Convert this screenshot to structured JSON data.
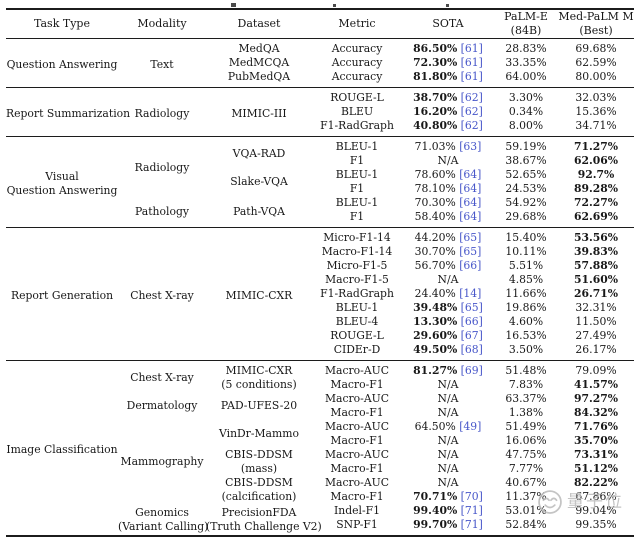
{
  "watermark": {
    "text": "量子位",
    "icon": "wechat-smiley-icon",
    "color": "#bdbdbd"
  },
  "table": {
    "cite_color": "#4756c9",
    "header": [
      {
        "lines": [
          "Task Type"
        ]
      },
      {
        "lines": [
          "Modality"
        ]
      },
      {
        "lines": [
          "Dataset"
        ]
      },
      {
        "lines": [
          "Metric"
        ]
      },
      {
        "lines": [
          "SOTA"
        ]
      },
      {
        "lines": [
          "PaLM-E",
          "(84B)"
        ]
      },
      {
        "lines": [
          "Med-PaLM M",
          "(Best)"
        ]
      }
    ],
    "sections": [
      {
        "task": [
          "Question Answering"
        ],
        "modality": [
          {
            "lines": [
              "Text"
            ],
            "span": 3
          }
        ],
        "dataset": [
          {
            "lines": [
              "MedQA"
            ],
            "span": 1
          },
          {
            "lines": [
              "MedMCQA"
            ],
            "span": 1
          },
          {
            "lines": [
              "PubMedQA"
            ],
            "span": 1
          }
        ],
        "rows": [
          {
            "metric": "Accuracy",
            "sota": {
              "value": "86.50%",
              "cite": "[61]",
              "bold": true
            },
            "palme": "28.83%",
            "medpalm": {
              "value": "69.68%",
              "bold": false
            }
          },
          {
            "metric": "Accuracy",
            "sota": {
              "value": "72.30%",
              "cite": "[61]",
              "bold": true
            },
            "palme": "33.35%",
            "medpalm": {
              "value": "62.59%",
              "bold": false
            }
          },
          {
            "metric": "Accuracy",
            "sota": {
              "value": "81.80%",
              "cite": "[61]",
              "bold": true
            },
            "palme": "64.00%",
            "medpalm": {
              "value": "80.00%",
              "bold": false
            }
          }
        ]
      },
      {
        "task": [
          "Report Summarization"
        ],
        "modality": [
          {
            "lines": [
              "Radiology"
            ],
            "span": 3
          }
        ],
        "dataset": [
          {
            "lines": [
              "MIMIC-III"
            ],
            "span": 3
          }
        ],
        "rows": [
          {
            "metric": "ROUGE-L",
            "sota": {
              "value": "38.70%",
              "cite": "[62]",
              "bold": true
            },
            "palme": "3.30%",
            "medpalm": {
              "value": "32.03%",
              "bold": false
            }
          },
          {
            "metric": "BLEU",
            "sota": {
              "value": "16.20%",
              "cite": "[62]",
              "bold": true
            },
            "palme": "0.34%",
            "medpalm": {
              "value": "15.36%",
              "bold": false
            }
          },
          {
            "metric": "F1-RadGraph",
            "sota": {
              "value": "40.80%",
              "cite": "[62]",
              "bold": true
            },
            "palme": "8.00%",
            "medpalm": {
              "value": "34.71%",
              "bold": false
            }
          }
        ]
      },
      {
        "task": [
          "Visual",
          "Question Answering"
        ],
        "modality": [
          {
            "lines": [
              "Radiology"
            ],
            "span": 4
          },
          {
            "lines": [
              "Pathology"
            ],
            "span": 2
          }
        ],
        "dataset": [
          {
            "lines": [
              "VQA-RAD"
            ],
            "span": 2
          },
          {
            "lines": [
              "Slake-VQA"
            ],
            "span": 2
          },
          {
            "lines": [
              "Path-VQA"
            ],
            "span": 2
          }
        ],
        "rows": [
          {
            "metric": "BLEU-1",
            "sota": {
              "value": "71.03%",
              "cite": "[63]",
              "bold": false
            },
            "palme": "59.19%",
            "medpalm": {
              "value": "71.27%",
              "bold": true
            }
          },
          {
            "metric": "F1",
            "sota": {
              "value": "N/A",
              "cite": "",
              "bold": false
            },
            "palme": "38.67%",
            "medpalm": {
              "value": "62.06%",
              "bold": true
            }
          },
          {
            "metric": "BLEU-1",
            "sota": {
              "value": "78.60%",
              "cite": "[64]",
              "bold": false
            },
            "palme": "52.65%",
            "medpalm": {
              "value": "92.7%",
              "bold": true
            }
          },
          {
            "metric": "F1",
            "sota": {
              "value": "78.10%",
              "cite": "[64]",
              "bold": false
            },
            "palme": "24.53%",
            "medpalm": {
              "value": "89.28%",
              "bold": true
            }
          },
          {
            "metric": "BLEU-1",
            "sota": {
              "value": "70.30%",
              "cite": "[64]",
              "bold": false
            },
            "palme": "54.92%",
            "medpalm": {
              "value": "72.27%",
              "bold": true
            }
          },
          {
            "metric": "F1",
            "sota": {
              "value": "58.40%",
              "cite": "[64]",
              "bold": false
            },
            "palme": "29.68%",
            "medpalm": {
              "value": "62.69%",
              "bold": true
            }
          }
        ]
      },
      {
        "task": [
          "Report Generation"
        ],
        "modality": [
          {
            "lines": [
              "Chest X-ray"
            ],
            "span": 9
          }
        ],
        "dataset": [
          {
            "lines": [
              "MIMIC-CXR"
            ],
            "span": 9
          }
        ],
        "rows": [
          {
            "metric": "Micro-F1-14",
            "sota": {
              "value": "44.20%",
              "cite": "[65]",
              "bold": false
            },
            "palme": "15.40%",
            "medpalm": {
              "value": "53.56%",
              "bold": true
            }
          },
          {
            "metric": "Macro-F1-14",
            "sota": {
              "value": "30.70%",
              "cite": "[65]",
              "bold": false
            },
            "palme": "10.11%",
            "medpalm": {
              "value": "39.83%",
              "bold": true
            }
          },
          {
            "metric": "Micro-F1-5",
            "sota": {
              "value": "56.70%",
              "cite": "[66]",
              "bold": false
            },
            "palme": "5.51%",
            "medpalm": {
              "value": "57.88%",
              "bold": true
            }
          },
          {
            "metric": "Macro-F1-5",
            "sota": {
              "value": "N/A",
              "cite": "",
              "bold": false
            },
            "palme": "4.85%",
            "medpalm": {
              "value": "51.60%",
              "bold": true
            }
          },
          {
            "metric": "F1-RadGraph",
            "sota": {
              "value": "24.40%",
              "cite": "[14]",
              "bold": false
            },
            "palme": "11.66%",
            "medpalm": {
              "value": "26.71%",
              "bold": true
            }
          },
          {
            "metric": "BLEU-1",
            "sota": {
              "value": "39.48%",
              "cite": "[65]",
              "bold": true
            },
            "palme": "19.86%",
            "medpalm": {
              "value": "32.31%",
              "bold": false
            }
          },
          {
            "metric": "BLEU-4",
            "sota": {
              "value": "13.30%",
              "cite": "[66]",
              "bold": true
            },
            "palme": "4.60%",
            "medpalm": {
              "value": "11.50%",
              "bold": false
            }
          },
          {
            "metric": "ROUGE-L",
            "sota": {
              "value": "29.60%",
              "cite": "[67]",
              "bold": true
            },
            "palme": "16.53%",
            "medpalm": {
              "value": "27.49%",
              "bold": false
            }
          },
          {
            "metric": "CIDEr-D",
            "sota": {
              "value": "49.50%",
              "cite": "[68]",
              "bold": true
            },
            "palme": "3.50%",
            "medpalm": {
              "value": "26.17%",
              "bold": false
            }
          }
        ]
      },
      {
        "task": [
          "Image Classification"
        ],
        "modality": [
          {
            "lines": [
              "Chest X-ray"
            ],
            "span": 2
          },
          {
            "lines": [
              "Dermatology"
            ],
            "span": 2
          },
          {
            "lines": [
              "Mammography"
            ],
            "span": 6
          },
          {
            "lines": [
              "Genomics",
              "(Variant Calling)"
            ],
            "span": 2
          }
        ],
        "dataset": [
          {
            "lines": [
              "MIMIC-CXR",
              "(5 conditions)"
            ],
            "span": 2
          },
          {
            "lines": [
              "PAD-UFES-20"
            ],
            "span": 2
          },
          {
            "lines": [
              "VinDr-Mammo"
            ],
            "span": 2
          },
          {
            "lines": [
              "CBIS-DDSM",
              "(mass)"
            ],
            "span": 2
          },
          {
            "lines": [
              "CBIS-DDSM",
              "(calcification)"
            ],
            "span": 2
          },
          {
            "lines": [
              "PrecisionFDA",
              "(Truth Challenge V2)"
            ],
            "span": 2
          }
        ],
        "rows": [
          {
            "metric": "Macro-AUC",
            "sota": {
              "value": "81.27%",
              "cite": "[69]",
              "bold": true
            },
            "palme": "51.48%",
            "medpalm": {
              "value": "79.09%",
              "bold": false
            }
          },
          {
            "metric": "Macro-F1",
            "sota": {
              "value": "N/A",
              "cite": "",
              "bold": false
            },
            "palme": "7.83%",
            "medpalm": {
              "value": "41.57%",
              "bold": true
            }
          },
          {
            "metric": "Macro-AUC",
            "sota": {
              "value": "N/A",
              "cite": "",
              "bold": false
            },
            "palme": "63.37%",
            "medpalm": {
              "value": "97.27%",
              "bold": true
            }
          },
          {
            "metric": "Macro-F1",
            "sota": {
              "value": "N/A",
              "cite": "",
              "bold": false
            },
            "palme": "1.38%",
            "medpalm": {
              "value": "84.32%",
              "bold": true
            }
          },
          {
            "metric": "Macro-AUC",
            "sota": {
              "value": "64.50%",
              "cite": "[49]",
              "bold": false
            },
            "palme": "51.49%",
            "medpalm": {
              "value": "71.76%",
              "bold": true
            }
          },
          {
            "metric": "Macro-F1",
            "sota": {
              "value": "N/A",
              "cite": "",
              "bold": false
            },
            "palme": "16.06%",
            "medpalm": {
              "value": "35.70%",
              "bold": true
            }
          },
          {
            "metric": "Macro-AUC",
            "sota": {
              "value": "N/A",
              "cite": "",
              "bold": false
            },
            "palme": "47.75%",
            "medpalm": {
              "value": "73.31%",
              "bold": true
            }
          },
          {
            "metric": "Macro-F1",
            "sota": {
              "value": "N/A",
              "cite": "",
              "bold": false
            },
            "palme": "7.77%",
            "medpalm": {
              "value": "51.12%",
              "bold": true
            }
          },
          {
            "metric": "Macro-AUC",
            "sota": {
              "value": "N/A",
              "cite": "",
              "bold": false
            },
            "palme": "40.67%",
            "medpalm": {
              "value": "82.22%",
              "bold": true
            }
          },
          {
            "metric": "Macro-F1",
            "sota": {
              "value": "70.71%",
              "cite": "[70]",
              "bold": true
            },
            "palme": "11.37%",
            "medpalm": {
              "value": "67.86%",
              "bold": false
            }
          },
          {
            "metric": "Indel-F1",
            "sota": {
              "value": "99.40%",
              "cite": "[71]",
              "bold": true
            },
            "palme": "53.01%",
            "medpalm": {
              "value": "99.04%",
              "bold": false
            }
          },
          {
            "metric": "SNP-F1",
            "sota": {
              "value": "99.70%",
              "cite": "[71]",
              "bold": true
            },
            "palme": "52.84%",
            "medpalm": {
              "value": "99.35%",
              "bold": false
            }
          }
        ]
      }
    ]
  }
}
